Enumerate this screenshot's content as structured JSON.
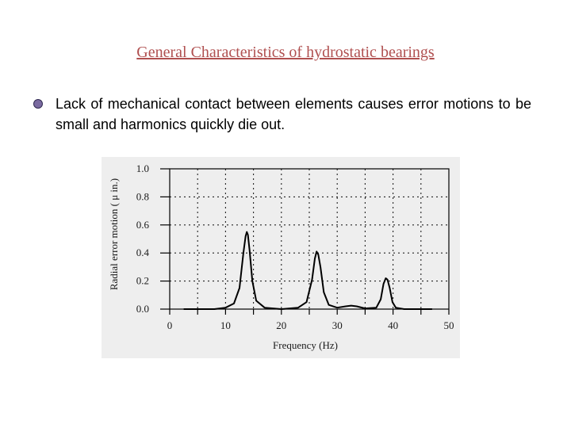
{
  "slide": {
    "title": "General Characteristics of hydrostatic bearings",
    "bullet_icon": "round-bullet-icon",
    "bullet_color": "#7a6aa0",
    "bullet_text": "Lack of mechanical contact between elements causes error motions  to be small and harmonics quickly die out."
  },
  "chart_data": {
    "type": "line",
    "title": "",
    "xlabel": "Frequency (Hz)",
    "ylabel": "Radial error motion ( μ in.)",
    "xlim": [
      0,
      50
    ],
    "ylim": [
      0,
      1.0
    ],
    "x_ticks": [
      "0",
      "10",
      "20",
      "30",
      "40",
      "50"
    ],
    "y_ticks": [
      "0.0",
      "0.2",
      "0.4",
      "0.6",
      "0.8",
      "1.0"
    ],
    "grid": true,
    "legend": "none",
    "series": [
      {
        "color": "#000000",
        "x": [
          2.5,
          8,
          10,
          11.5,
          12.5,
          13.2,
          13.6,
          13.8,
          14.0,
          14.3,
          14.8,
          15.5,
          17,
          20,
          23,
          24.5,
          25.5,
          26.0,
          26.3,
          26.6,
          27.0,
          27.6,
          28.5,
          30,
          31.5,
          32.5,
          33.5,
          35,
          37,
          37.8,
          38.3,
          38.7,
          39.0,
          39.4,
          39.9,
          40.5,
          42,
          45,
          47
        ],
        "y": [
          0.0,
          0.0,
          0.01,
          0.04,
          0.15,
          0.4,
          0.52,
          0.55,
          0.53,
          0.42,
          0.2,
          0.06,
          0.01,
          0.0,
          0.01,
          0.05,
          0.21,
          0.36,
          0.41,
          0.39,
          0.3,
          0.12,
          0.03,
          0.01,
          0.02,
          0.025,
          0.02,
          0.005,
          0.01,
          0.07,
          0.18,
          0.22,
          0.21,
          0.15,
          0.05,
          0.01,
          0.0,
          0.0,
          0.0
        ]
      }
    ]
  }
}
